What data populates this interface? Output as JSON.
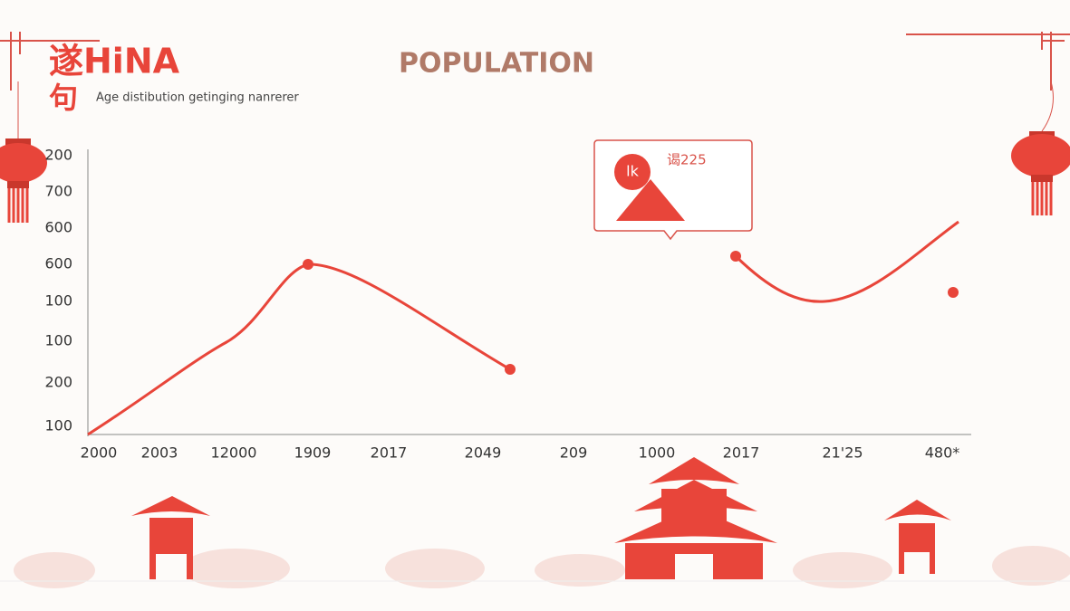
{
  "header": {
    "logo_line1": "遂HiNA",
    "logo_line2": "句",
    "subtitle": "Age distibution getinging nanrerer",
    "title": "POPULATION"
  },
  "axis": {
    "y_labels": [
      "200",
      "700",
      "600",
      "600",
      "100",
      "100",
      "200",
      "100"
    ],
    "x_labels": [
      "2000",
      "2003",
      "12000",
      "1909",
      "2017",
      "2049",
      "209",
      "1000",
      "2017",
      "21'25",
      "480*"
    ]
  },
  "callout": {
    "badge": "lk",
    "text": "谒225"
  }
}
